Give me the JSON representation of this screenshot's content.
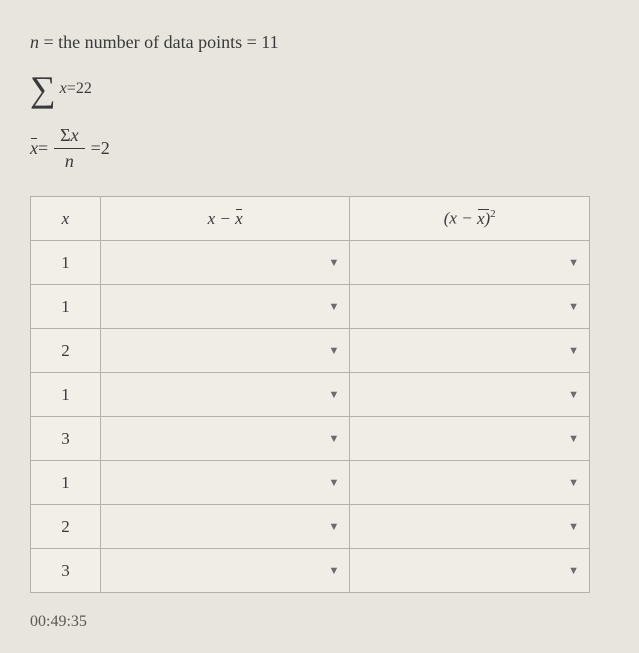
{
  "formulas": {
    "n_label_pre": "n",
    "n_label_mid": " = the number of data points = ",
    "n_value": "11",
    "sum_var": "x",
    "sum_eq": " = ",
    "sum_value": "22",
    "mean_var": "x",
    "mean_eq1": " = ",
    "mean_num_sigma": "Σ",
    "mean_num_var": "x",
    "mean_den": "n",
    "mean_eq2": " = ",
    "mean_value": "2"
  },
  "table": {
    "headers": {
      "x": "x",
      "dev_l": "x",
      "dev_mid": " − ",
      "dev_r": "x",
      "sq_l": "(x",
      "sq_mid": " − ",
      "sq_r": "x)",
      "sq_exp": "2"
    },
    "rows": [
      {
        "x": "1"
      },
      {
        "x": "1"
      },
      {
        "x": "2"
      },
      {
        "x": "1"
      },
      {
        "x": "3"
      },
      {
        "x": "1"
      },
      {
        "x": "2"
      },
      {
        "x": "3"
      }
    ]
  },
  "timer": "00:49:35"
}
